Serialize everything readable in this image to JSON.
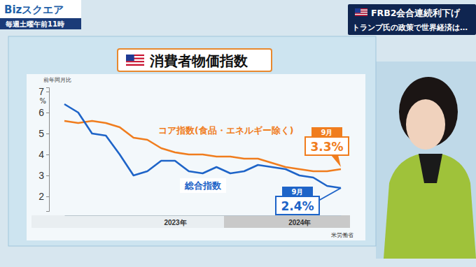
{
  "header": {
    "logo": "Bizスクエア",
    "schedule": "毎週土曜午前11時",
    "headline": [
      "FRB2会合連続利下げ",
      "トランプ氏の政策で世界経済は…"
    ]
  },
  "chart_data": {
    "type": "line",
    "title": "消費者物価指数",
    "y_label": "前年同月比",
    "y_unit": "%",
    "source": "米労働省",
    "categories": [
      null,
      null,
      null,
      null,
      null,
      null,
      null,
      null,
      "2023年",
      null,
      null,
      null,
      null,
      null,
      null,
      null,
      null,
      "2024年",
      null,
      null,
      null
    ],
    "ylim": [
      1.3,
      7.2
    ],
    "yticks": [
      2,
      3,
      4,
      5,
      6,
      7
    ],
    "series": [
      {
        "name": "コア指数(食品・エネルギー除く)",
        "color": "#f07d1e",
        "values": [
          5.6,
          5.5,
          5.6,
          5.5,
          5.3,
          4.8,
          4.7,
          4.3,
          4.1,
          4.0,
          4.0,
          3.9,
          3.9,
          3.8,
          3.8,
          3.6,
          3.4,
          3.3,
          3.2,
          3.2,
          3.3
        ],
        "value_labels": [
          null,
          null,
          null,
          null,
          null,
          null,
          null,
          null,
          null,
          null,
          null,
          null,
          null,
          null,
          null,
          null,
          null,
          null,
          null,
          null,
          "3.3%"
        ],
        "callout": "9月"
      },
      {
        "name": "総合指数",
        "color": "#1e64c8",
        "values": [
          6.4,
          6.0,
          5.0,
          4.9,
          4.0,
          3.0,
          3.2,
          3.7,
          3.7,
          3.2,
          3.1,
          3.4,
          3.1,
          3.2,
          3.5,
          3.4,
          3.3,
          3.0,
          2.9,
          2.5,
          2.4
        ],
        "value_labels": [
          null,
          null,
          null,
          null,
          null,
          null,
          null,
          null,
          null,
          null,
          null,
          null,
          null,
          null,
          null,
          null,
          null,
          null,
          null,
          null,
          "2.4%"
        ],
        "callout": "9月"
      }
    ]
  }
}
